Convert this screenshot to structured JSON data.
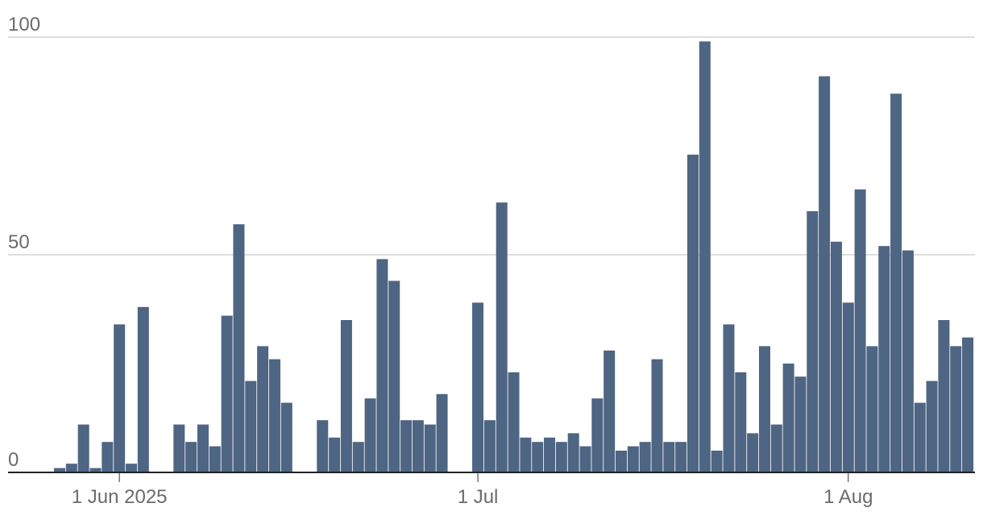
{
  "chart_data": {
    "type": "bar",
    "color": "#4e6583",
    "x": [
      "2025-05-27",
      "2025-05-28",
      "2025-05-29",
      "2025-05-30",
      "2025-05-31",
      "2025-06-01",
      "2025-06-02",
      "2025-06-03",
      "2025-06-04",
      "2025-06-05",
      "2025-06-06",
      "2025-06-07",
      "2025-06-08",
      "2025-06-09",
      "2025-06-10",
      "2025-06-11",
      "2025-06-12",
      "2025-06-13",
      "2025-06-14",
      "2025-06-15",
      "2025-06-16",
      "2025-06-17",
      "2025-06-18",
      "2025-06-19",
      "2025-06-20",
      "2025-06-21",
      "2025-06-22",
      "2025-06-23",
      "2025-06-24",
      "2025-06-25",
      "2025-06-26",
      "2025-06-27",
      "2025-06-28",
      "2025-06-29",
      "2025-06-30",
      "2025-07-01",
      "2025-07-02",
      "2025-07-03",
      "2025-07-04",
      "2025-07-05",
      "2025-07-06",
      "2025-07-07",
      "2025-07-08",
      "2025-07-09",
      "2025-07-10",
      "2025-07-11",
      "2025-07-12",
      "2025-07-13",
      "2025-07-14",
      "2025-07-15",
      "2025-07-16",
      "2025-07-17",
      "2025-07-18",
      "2025-07-19",
      "2025-07-20",
      "2025-07-21",
      "2025-07-22",
      "2025-07-23",
      "2025-07-24",
      "2025-07-25",
      "2025-07-26",
      "2025-07-27",
      "2025-07-28",
      "2025-07-29",
      "2025-07-30",
      "2025-07-31",
      "2025-08-01",
      "2025-08-02",
      "2025-08-03",
      "2025-08-04",
      "2025-08-05",
      "2025-08-06",
      "2025-08-07",
      "2025-08-08",
      "2025-08-09",
      "2025-08-10",
      "2025-08-11"
    ],
    "values": [
      1,
      2,
      11,
      1,
      7,
      34,
      2,
      38,
      0,
      0,
      11,
      7,
      11,
      6,
      36,
      57,
      21,
      29,
      26,
      16,
      0,
      0,
      12,
      8,
      35,
      7,
      17,
      49,
      44,
      12,
      12,
      11,
      18,
      0,
      0,
      39,
      12,
      62,
      23,
      8,
      7,
      8,
      7,
      9,
      6,
      17,
      28,
      5,
      6,
      7,
      26,
      7,
      7,
      73,
      99,
      5,
      34,
      23,
      9,
      29,
      11,
      25,
      22,
      60,
      91,
      53,
      39,
      65,
      29,
      52,
      87,
      51,
      16,
      21,
      35,
      29,
      31
    ],
    "ylim": [
      0,
      100
    ],
    "yticks": [
      0,
      50,
      100
    ],
    "xticks": [
      {
        "value": "2025-06-01",
        "label": "1 Jun 2025"
      },
      {
        "value": "2025-07-01",
        "label": "1 Jul"
      },
      {
        "value": "2025-08-01",
        "label": "1 Aug"
      }
    ],
    "grid": true
  }
}
